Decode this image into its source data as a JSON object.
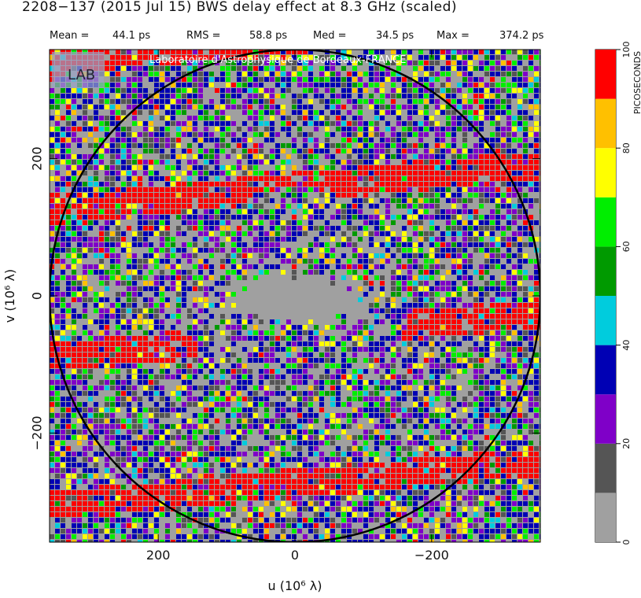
{
  "chart_data": {
    "type": "heatmap",
    "title": "2208−137  (2015 Jul 15)   BWS delay effect at  8.3 GHz (scaled)",
    "stats": {
      "labels": [
        "Mean =",
        "RMS =",
        "Med =",
        "Max ="
      ],
      "texts": [
        "44.1 ps",
        "58.8 ps",
        "34.5 ps",
        "374.2 ps"
      ]
    },
    "annotation": "Laboratoire d'Astrophysique de Bordeaux-FRANCE",
    "logo": "LAB",
    "x_label": "u  (10⁶ λ)",
    "y_label": "v  (10⁶ λ)",
    "xlim": [
      359,
      -359
    ],
    "xticks": [
      200,
      0,
      {
        "value": -200,
        "label": "−200"
      }
    ],
    "ylim": [
      -359,
      359
    ],
    "yticks": [
      {
        "value": -200,
        "label": "−200"
      },
      0,
      200
    ],
    "colorbar": {
      "label": "PICOSECONDS",
      "lim": [
        0,
        100
      ],
      "bounds": [
        0,
        10,
        20,
        30,
        40,
        50,
        60,
        70,
        80,
        90,
        100
      ],
      "colors": [
        "#a0a0a0",
        "#555555",
        "#7f00c8",
        "#0000b4",
        "#00ccdd",
        "#009a00",
        "#00ee00",
        "#ffff00",
        "#ffc000",
        "#ff0000"
      ],
      "ticks": [
        0,
        20,
        40,
        60,
        80,
        100
      ]
    }
  }
}
